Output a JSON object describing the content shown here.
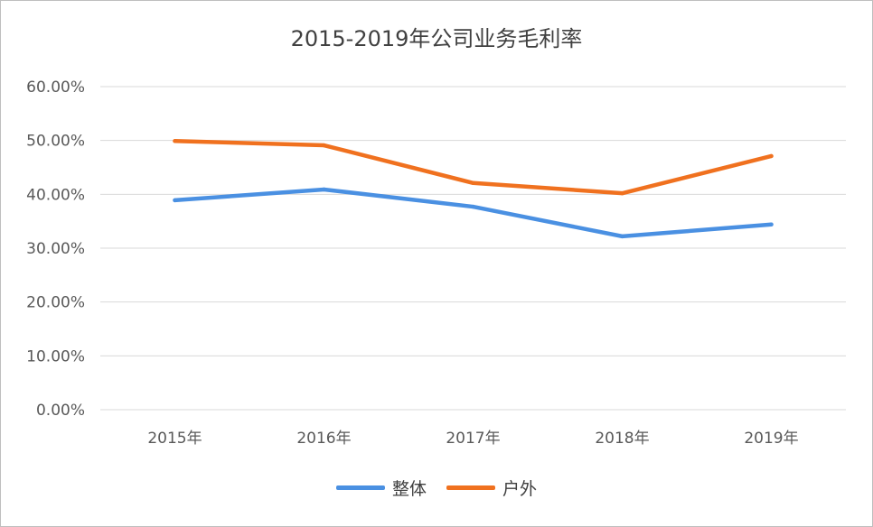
{
  "chart_data": {
    "type": "line",
    "title": "2015-2019年公司业务毛利率",
    "categories": [
      "2015年",
      "2016年",
      "2017年",
      "2018年",
      "2019年"
    ],
    "series": [
      {
        "name": "整体",
        "color": "#4a90e2",
        "values": [
          0.389,
          0.409,
          0.377,
          0.322,
          0.344
        ]
      },
      {
        "name": "户外",
        "color": "#f0711f",
        "values": [
          0.499,
          0.491,
          0.421,
          0.402,
          0.471
        ]
      }
    ],
    "ylim": [
      0,
      0.6
    ],
    "yticks": [
      "0.00%",
      "10.00%",
      "20.00%",
      "30.00%",
      "40.00%",
      "50.00%",
      "60.00%"
    ],
    "grid": true,
    "legend": "bottom"
  }
}
